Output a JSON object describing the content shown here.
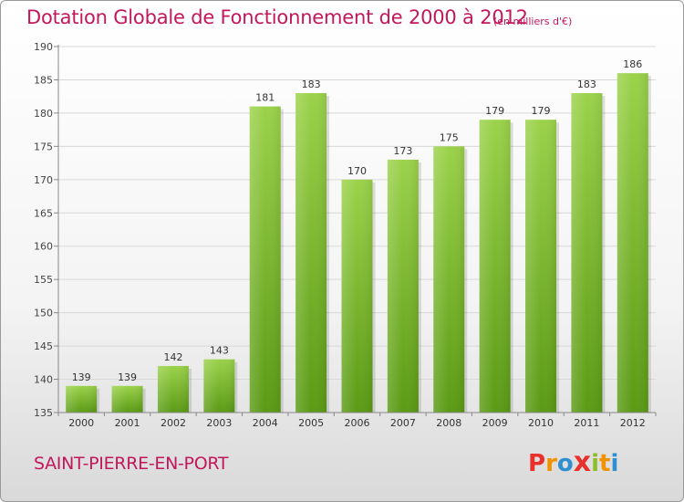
{
  "header": {
    "title": "Dotation Globale de Fonctionnement de 2000 à 2012",
    "subtitle": "(en milliers d'€)"
  },
  "footer": {
    "commune": "SAINT-PIERRE-EN-PORT",
    "logo_letters": [
      "P",
      "r",
      "o",
      "x",
      "i",
      "t",
      "i"
    ]
  },
  "colors": {
    "accent": "#c2185b",
    "bar_top": "#9bd24a",
    "bar_bottom": "#5a9a14",
    "logo": [
      "#e8312a",
      "#f39200",
      "#2f8fd0",
      "#e8312a",
      "#8cbf26",
      "#f39200",
      "#2f8fd0"
    ]
  },
  "chart_data": {
    "type": "bar",
    "categories": [
      "2000",
      "2001",
      "2002",
      "2003",
      "2004",
      "2005",
      "2006",
      "2007",
      "2008",
      "2009",
      "2010",
      "2011",
      "2012"
    ],
    "values": [
      139,
      139,
      142,
      143,
      181,
      183,
      170,
      173,
      175,
      179,
      179,
      183,
      186
    ],
    "ylim": [
      135,
      190
    ],
    "yticks": [
      135,
      140,
      145,
      150,
      155,
      160,
      165,
      170,
      175,
      180,
      185,
      190
    ],
    "grid": true,
    "legend": "none"
  }
}
